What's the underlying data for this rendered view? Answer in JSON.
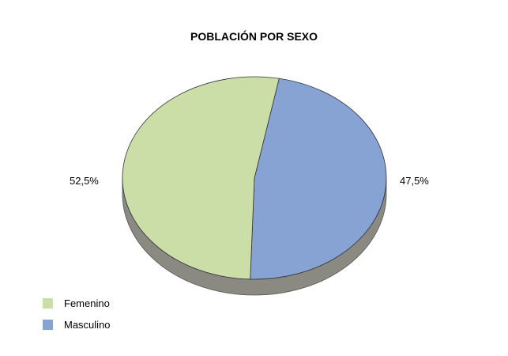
{
  "chart_data": {
    "type": "pie",
    "title": "POBLACIÓN POR SEXO",
    "slices": [
      {
        "name": "Femenino",
        "value": 52.5,
        "label": "52,5%",
        "color": "#cbdea8"
      },
      {
        "name": "Masculino",
        "value": 47.5,
        "label": "47,5%",
        "color": "#86a3d3"
      }
    ],
    "legend_position": "bottom-left",
    "style": "3d"
  }
}
